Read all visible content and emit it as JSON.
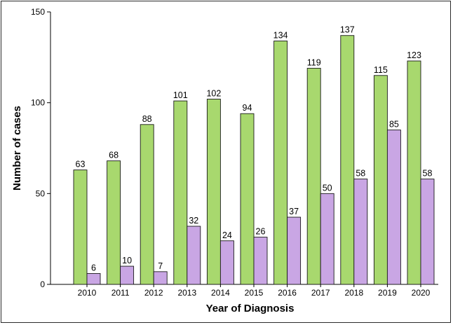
{
  "chart_data": {
    "type": "bar",
    "xlabel": "Year of Diagnosis",
    "ylabel": "Number of cases",
    "ylim": [
      0,
      150
    ],
    "yticks": [
      0,
      50,
      100,
      150
    ],
    "grid": false,
    "categories": [
      "2010",
      "2011",
      "2012",
      "2013",
      "2014",
      "2015",
      "2016",
      "2017",
      "2018",
      "2019",
      "2020"
    ],
    "series": [
      {
        "values": [
          63,
          68,
          88,
          101,
          102,
          94,
          134,
          119,
          137,
          115,
          123
        ],
        "color": "#a8d86e"
      },
      {
        "values": [
          6,
          10,
          7,
          32,
          24,
          26,
          37,
          50,
          58,
          85,
          58
        ],
        "color": "#c9a6e4"
      }
    ]
  }
}
